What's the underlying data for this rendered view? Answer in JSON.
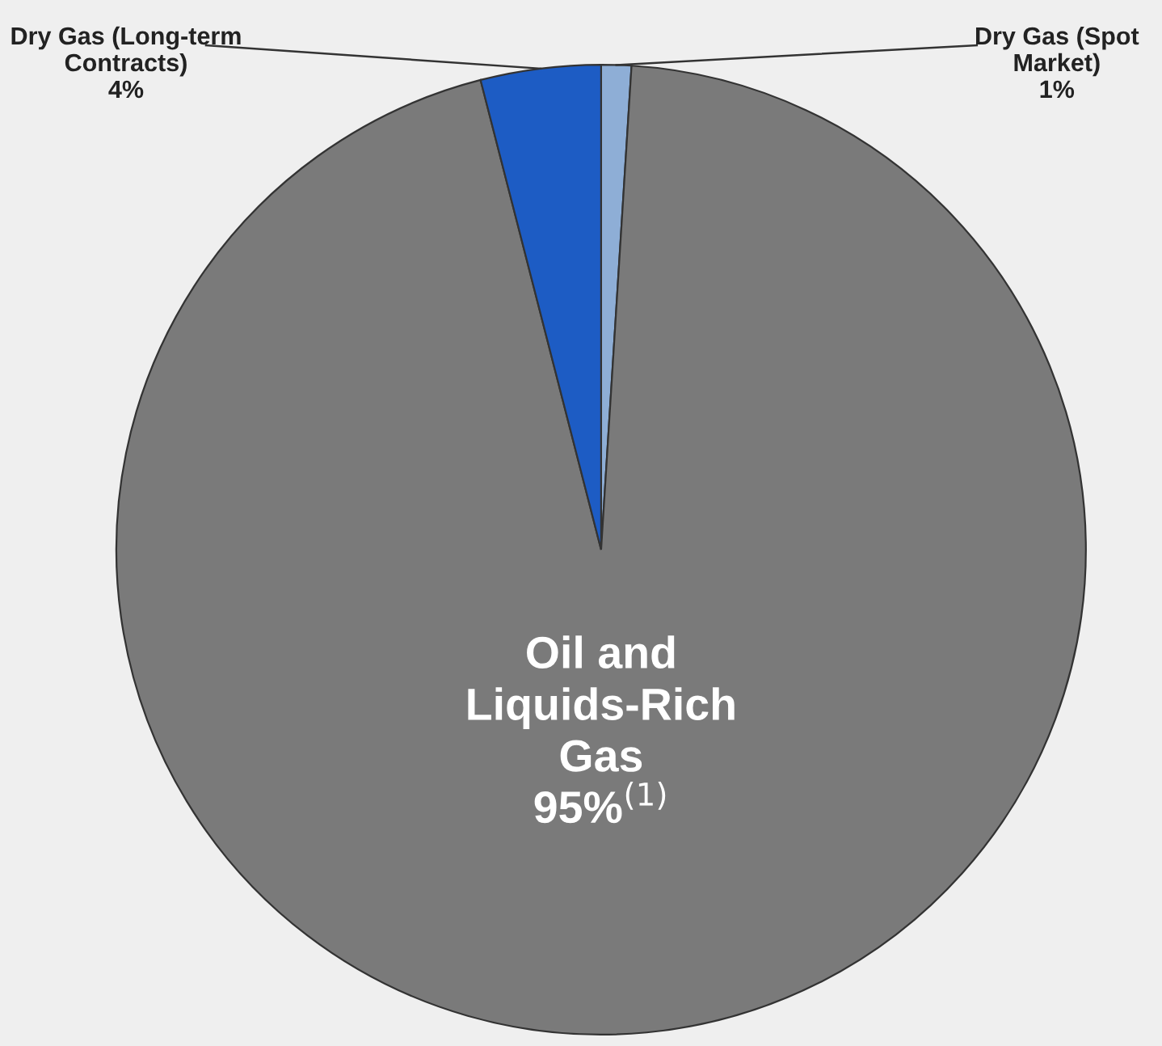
{
  "chart_data": {
    "type": "pie",
    "categories": [
      "Dry Gas (Spot Market)",
      "Oil and Liquids-Rich Gas",
      "Dry Gas (Long-term Contracts)"
    ],
    "values": [
      1,
      95,
      4
    ],
    "colors": [
      "#8eaed6",
      "#7a7a7a",
      "#1d5cc4"
    ],
    "value_labels": [
      "1%",
      "95%$^{(1)}$",
      "4%"
    ],
    "legend": false
  }
}
